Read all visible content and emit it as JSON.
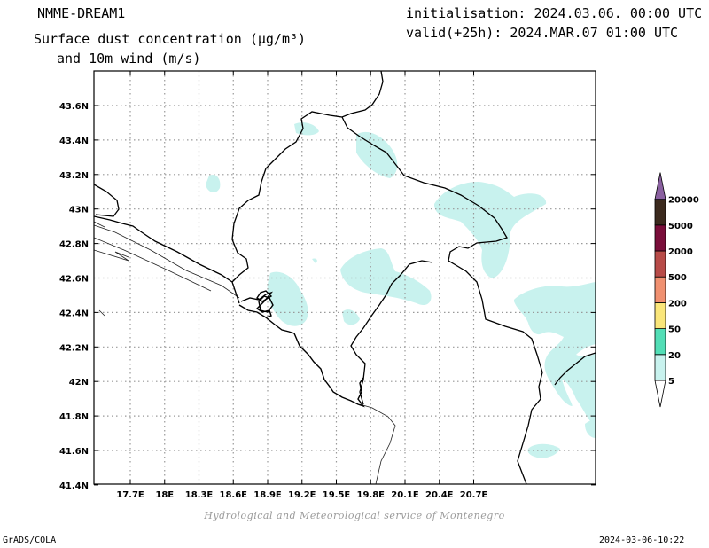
{
  "header": {
    "model": "NMME-DREAM1",
    "title_line1": "Surface dust concentration (µg/m³)",
    "title_line2": "and 10m wind (m/s)",
    "init": "initialisation: 2024.03.06. 00:00 UTC",
    "valid": "valid(+25h): 2024.MAR.07 01:00 UTC"
  },
  "footer": {
    "left": "GrADS/COLA",
    "right": "2024-03-06-10:22",
    "credit": "Hydrological and Meteorological service of Montenegro"
  },
  "map": {
    "lon_ticks": [
      "17.7E",
      "18E",
      "18.3E",
      "18.6E",
      "18.9E",
      "19.2E",
      "19.5E",
      "19.8E",
      "20.1E",
      "20.4E",
      "20.7E"
    ],
    "lat_ticks": [
      "43.6N",
      "43.4N",
      "43.2N",
      "43N",
      "42.8N",
      "42.6N",
      "42.4N",
      "42.2N",
      "42N",
      "41.8N",
      "41.6N",
      "41.4N"
    ]
  },
  "legend": {
    "levels": [
      "5",
      "20",
      "50",
      "200",
      "500",
      "2000",
      "5000",
      "20000"
    ],
    "colors": [
      "#ffffff",
      "#c8f2ee",
      "#52deb6",
      "#fae67a",
      "#f09070",
      "#b84b48",
      "#7a0e3a",
      "#3c2a1e",
      "#8a60a0"
    ]
  }
}
